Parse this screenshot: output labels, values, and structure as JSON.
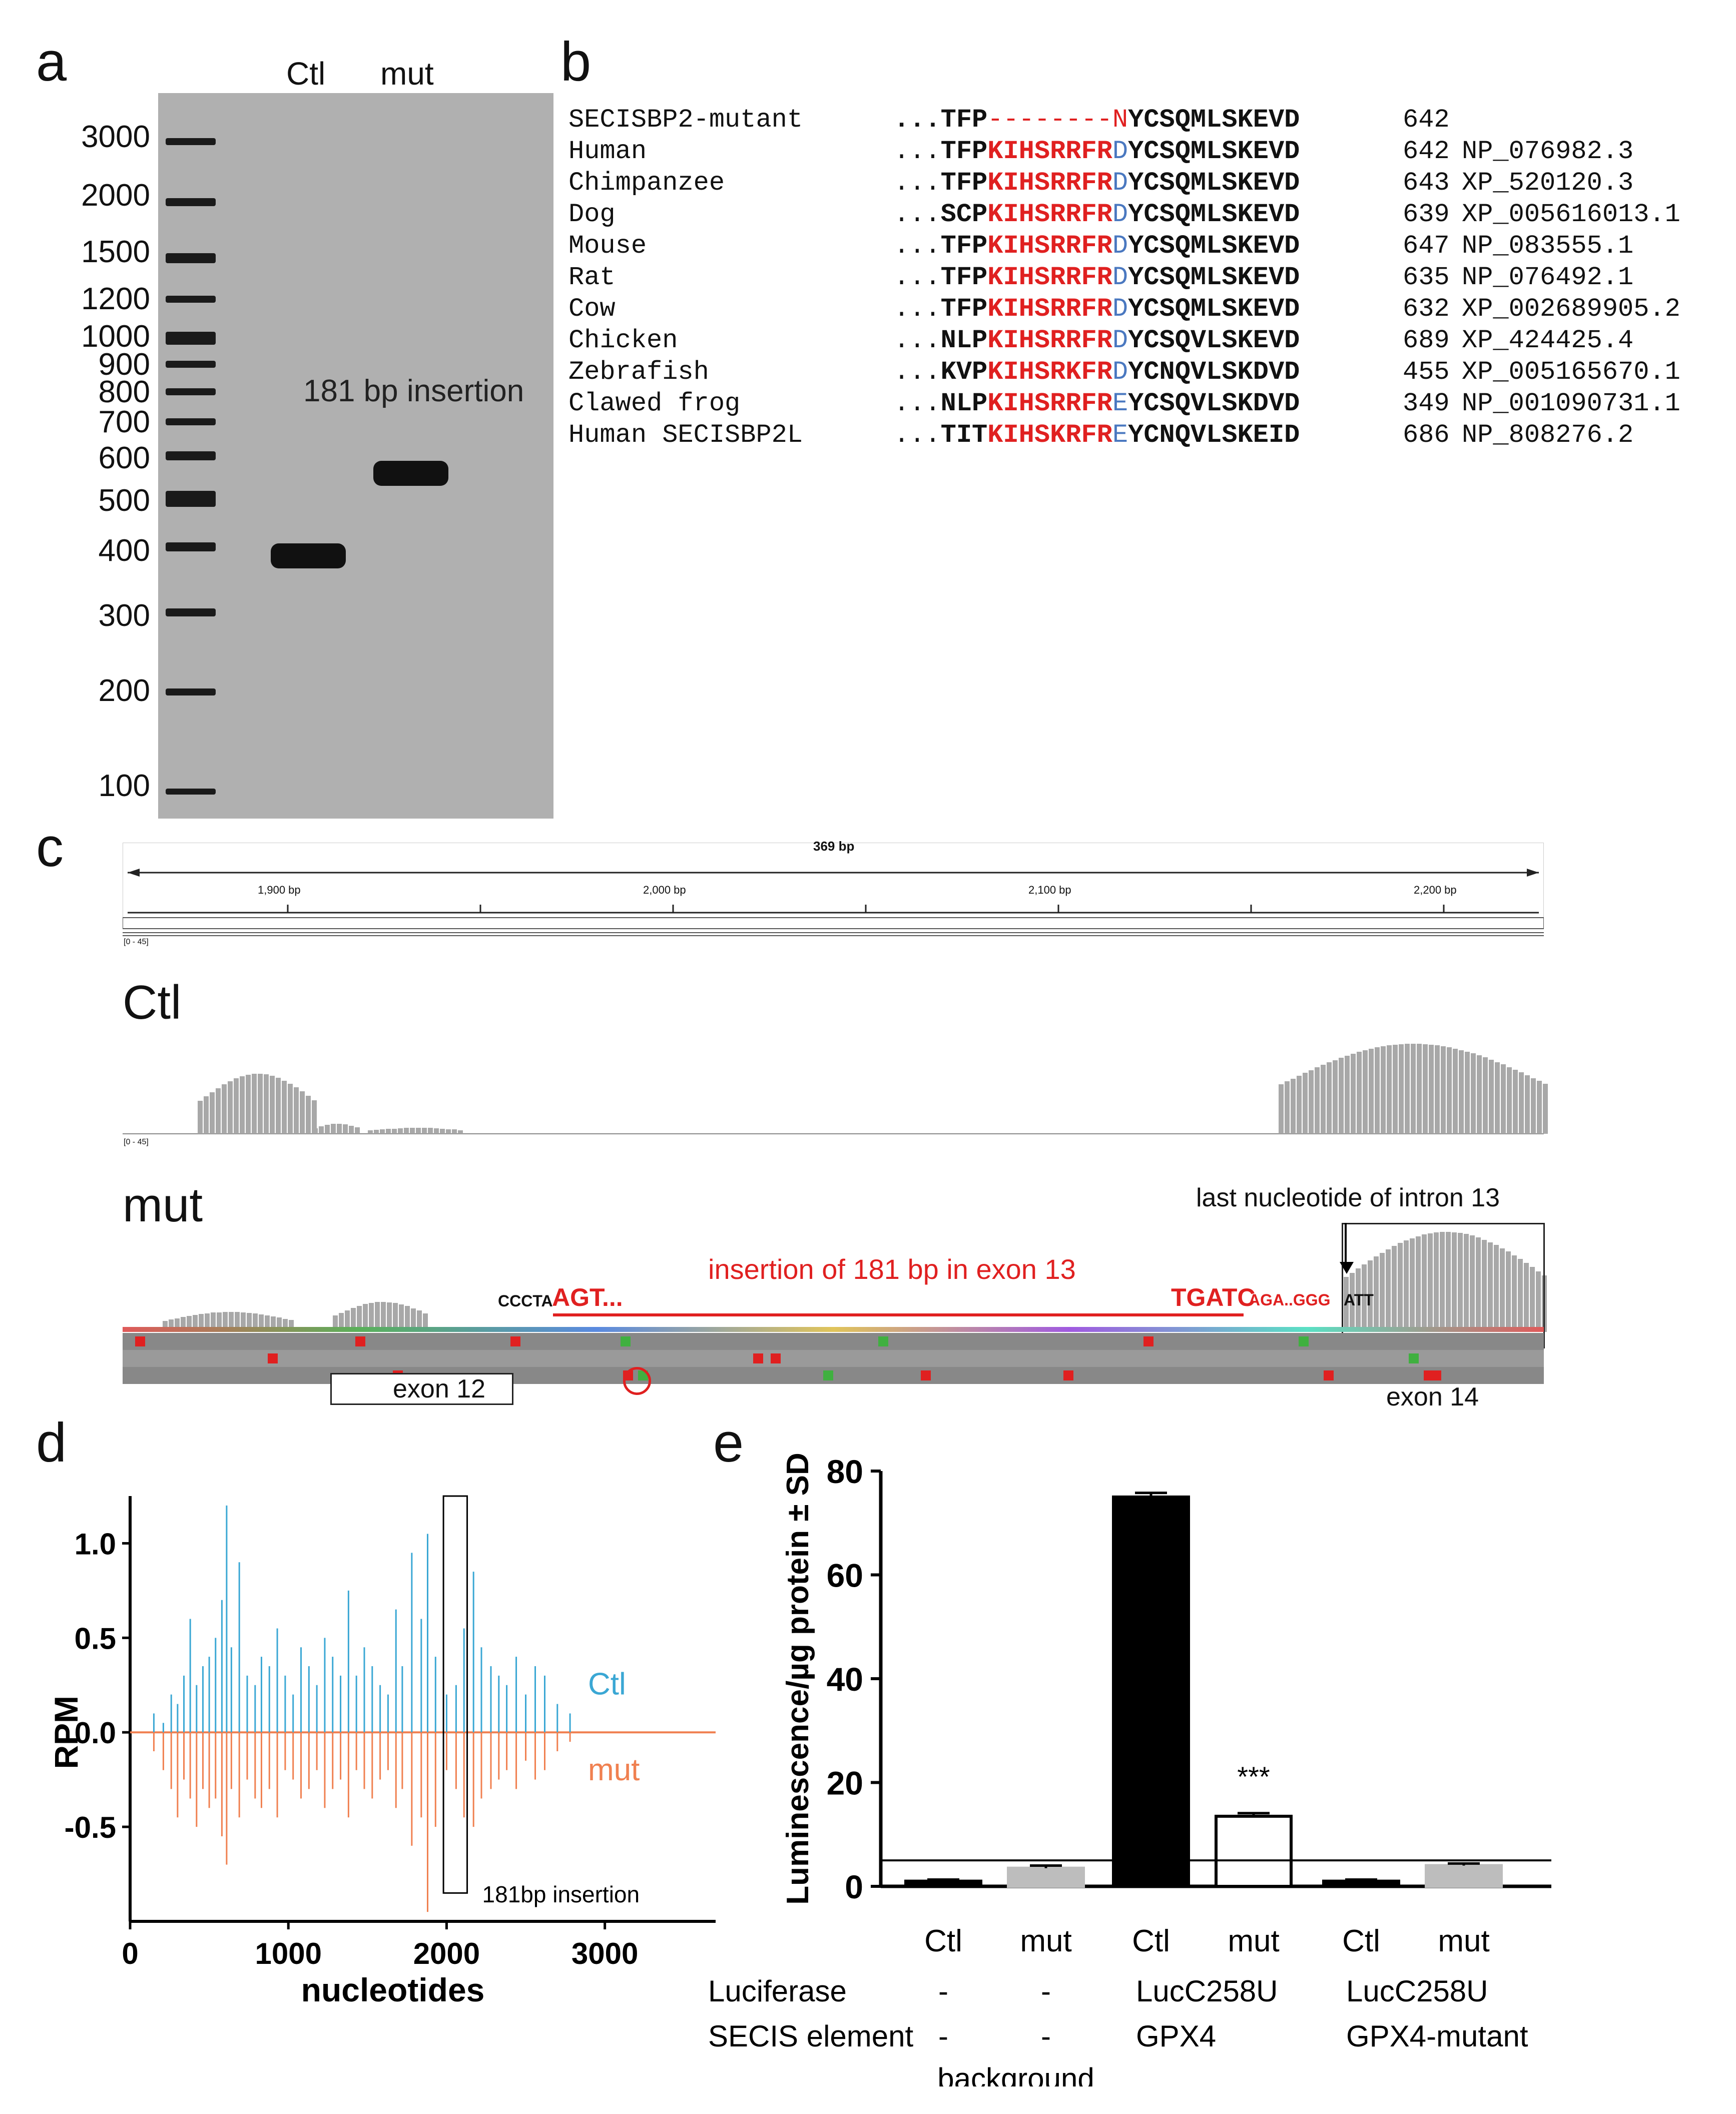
{
  "panels": {
    "a": "a",
    "b": "b",
    "c": "c",
    "d": "d",
    "e": "e"
  },
  "gel": {
    "lanes": [
      "Ctl",
      "mut"
    ],
    "ladder": [
      "3000",
      "2000",
      "1500",
      "1200",
      "1000",
      "900",
      "800",
      "700",
      "600",
      "500",
      "400",
      "300",
      "200",
      "100"
    ],
    "annotation": "181 bp insertion"
  },
  "alignment": {
    "rows": [
      {
        "species": "SECISBP2-mutant",
        "prefix": "...TFP",
        "red": "--------N",
        "blue": "",
        "bold": "YCSQMLSKEVD",
        "num": "642",
        "acc": ""
      },
      {
        "species": "Human",
        "prefix": "...TFP",
        "red": "KIHSRRFR",
        "blue": "D",
        "bold": "YCSQMLSKEVD",
        "num": "642",
        "acc": "NP_076982.3"
      },
      {
        "species": "Chimpanzee",
        "prefix": "...TFP",
        "red": "KIHSRRFR",
        "blue": "D",
        "bold": "YCSQMLSKEVD",
        "num": "643",
        "acc": "XP_520120.3"
      },
      {
        "species": "Dog",
        "prefix": "...SCP",
        "red": "KIHSRRFR",
        "blue": "D",
        "bold": "YCSQMLSKEVD",
        "num": "639",
        "acc": "XP_005616013.1"
      },
      {
        "species": "Mouse",
        "prefix": "...TFP",
        "red": "KIHSRRFR",
        "blue": "D",
        "bold": "YCSQMLSKEVD",
        "num": "647",
        "acc": "NP_083555.1"
      },
      {
        "species": "Rat",
        "prefix": "...TFP",
        "red": "KIHSRRFR",
        "blue": "D",
        "bold": "YCSQMLSKEVD",
        "num": "635",
        "acc": "NP_076492.1"
      },
      {
        "species": "Cow",
        "prefix": "...TFP",
        "red": "KIHSRRFR",
        "blue": "D",
        "bold": "YCSQMLSKEVD",
        "num": "632",
        "acc": "XP_002689905.2"
      },
      {
        "species": "Chicken",
        "prefix": "...NLP",
        "red": "KIHSRRFR",
        "blue": "D",
        "bold": "YCSQVLSKEVD",
        "num": "689",
        "acc": "XP_424425.4"
      },
      {
        "species": "Zebrafish",
        "prefix": "...KVP",
        "red": "KIHSRKFR",
        "blue": "D",
        "bold": "YCNQVLSKDVD",
        "num": "455",
        "acc": "XP_005165670.1"
      },
      {
        "species": "Clawed frog",
        "prefix": "...NLP",
        "red": "KIHSRRFR",
        "blue": "E",
        "bold": "YCSQVLSKDVD",
        "num": "349",
        "acc": "NP_001090731.1"
      },
      {
        "species": "Human SECISBP2L",
        "prefix": "...TIT",
        "red": "KIHSKRFR",
        "blue": "E",
        "bold": "YCNQVLSKEID",
        "num": "686",
        "acc": "NP_808276.2"
      }
    ]
  },
  "browser": {
    "span": "369 bp",
    "ruler_ticks": [
      "1,900 bp",
      "2,000 bp",
      "2,100 bp",
      "2,200 bp"
    ],
    "range_label": "[0 - 45]",
    "ctl_label": "Ctl",
    "mut_label": "mut",
    "last_nucleotide": "last nucleotide of intron 13",
    "insertion_label": "insertion of 181 bp in exon 13",
    "left_seq_black": "CCCTA",
    "left_seq_red": "AGT...",
    "right_seq_red": "TGATC",
    "right_seq_red_small": "AGA..GGG",
    "right_seq_black": "ATT",
    "exon12": "exon 12",
    "exon14": "exon 14"
  },
  "chart_data": [
    {
      "type": "bar",
      "panel": "d",
      "ylabel": "RPM",
      "xlabel": "nucleotides",
      "xlim": [
        0,
        3700
      ],
      "ylim": [
        -1.0,
        1.25
      ],
      "xticks": [
        "0",
        "1000",
        "2000",
        "3000"
      ],
      "yticks": [
        "-0.5",
        "0.0",
        "0.5",
        "1.0"
      ],
      "series": [
        {
          "name": "Ctl",
          "color": "#3aa7d4",
          "x": [
            150,
            210,
            260,
            300,
            340,
            380,
            420,
            460,
            500,
            540,
            580,
            610,
            640,
            690,
            740,
            790,
            830,
            880,
            930,
            980,
            1030,
            1080,
            1130,
            1180,
            1230,
            1280,
            1330,
            1380,
            1430,
            1480,
            1530,
            1580,
            1630,
            1680,
            1720,
            1780,
            1840,
            1880,
            1930,
            2000,
            2060,
            2110,
            2170,
            2220,
            2280,
            2330,
            2380,
            2440,
            2500,
            2560,
            2620,
            2700,
            2780
          ],
          "values": [
            0.1,
            0.05,
            0.2,
            0.15,
            0.3,
            0.6,
            0.25,
            0.35,
            0.4,
            0.5,
            0.7,
            1.2,
            0.45,
            0.9,
            0.3,
            0.25,
            0.4,
            0.35,
            0.55,
            0.3,
            0.2,
            0.45,
            0.35,
            0.25,
            0.5,
            0.4,
            0.3,
            0.75,
            0.3,
            0.45,
            0.35,
            0.25,
            0.2,
            0.65,
            0.35,
            0.95,
            0.6,
            1.05,
            0.4,
            0.2,
            0.25,
            0.55,
            0.85,
            0.45,
            0.35,
            0.3,
            0.25,
            0.4,
            0.2,
            0.35,
            0.3,
            0.15,
            0.1
          ]
        },
        {
          "name": "mut",
          "color": "#f08050",
          "x": [
            150,
            210,
            260,
            300,
            340,
            380,
            420,
            460,
            500,
            540,
            580,
            610,
            640,
            690,
            740,
            790,
            830,
            880,
            930,
            980,
            1030,
            1080,
            1130,
            1180,
            1230,
            1280,
            1330,
            1380,
            1430,
            1480,
            1530,
            1580,
            1630,
            1680,
            1720,
            1780,
            1840,
            1880,
            1930,
            2000,
            2060,
            2110,
            2170,
            2220,
            2280,
            2330,
            2380,
            2440,
            2500,
            2560,
            2620,
            2700,
            2780
          ],
          "values": [
            -0.1,
            -0.2,
            -0.3,
            -0.45,
            -0.25,
            -0.35,
            -0.5,
            -0.3,
            -0.4,
            -0.35,
            -0.55,
            -0.7,
            -0.3,
            -0.45,
            -0.25,
            -0.35,
            -0.4,
            -0.3,
            -0.45,
            -0.2,
            -0.25,
            -0.35,
            -0.3,
            -0.2,
            -0.4,
            -0.3,
            -0.25,
            -0.45,
            -0.2,
            -0.3,
            -0.35,
            -0.25,
            -0.2,
            -0.4,
            -0.3,
            -0.6,
            -0.45,
            -0.95,
            -0.5,
            -0.2,
            -0.3,
            -0.45,
            -0.5,
            -0.35,
            -0.3,
            -0.25,
            -0.2,
            -0.3,
            -0.15,
            -0.25,
            -0.2,
            -0.1,
            -0.05
          ]
        }
      ],
      "legend": [
        "Ctl",
        "mut"
      ],
      "annotation": "181bp insertion",
      "box_x": [
        1980,
        2130
      ]
    },
    {
      "type": "bar",
      "panel": "e",
      "ylabel": "Luminescence/µg protein ± SD",
      "categories": [
        "Ctl",
        "mut",
        "Ctl",
        "mut",
        "Ctl",
        "mut"
      ],
      "values": [
        1,
        3.5,
        75,
        13.5,
        1,
        4
      ],
      "errors": [
        0.3,
        0.5,
        0.8,
        0.6,
        0.3,
        0.4
      ],
      "colors": [
        "#000000",
        "#bdbdbd",
        "#000000",
        "#ffffff",
        "#000000",
        "#bdbdbd"
      ],
      "ylim": [
        0,
        80
      ],
      "yticks": [
        "0",
        "20",
        "40",
        "60",
        "80"
      ],
      "threshold": 5,
      "significance": "***",
      "rows": [
        {
          "label": "Luciferase",
          "cells": [
            "-",
            "-",
            "LucC258U",
            "LucC258U"
          ]
        },
        {
          "label": "SECIS element",
          "cells": [
            "-",
            "-",
            "GPX4",
            "GPX4-mutant"
          ]
        }
      ],
      "background_label": "background"
    }
  ]
}
